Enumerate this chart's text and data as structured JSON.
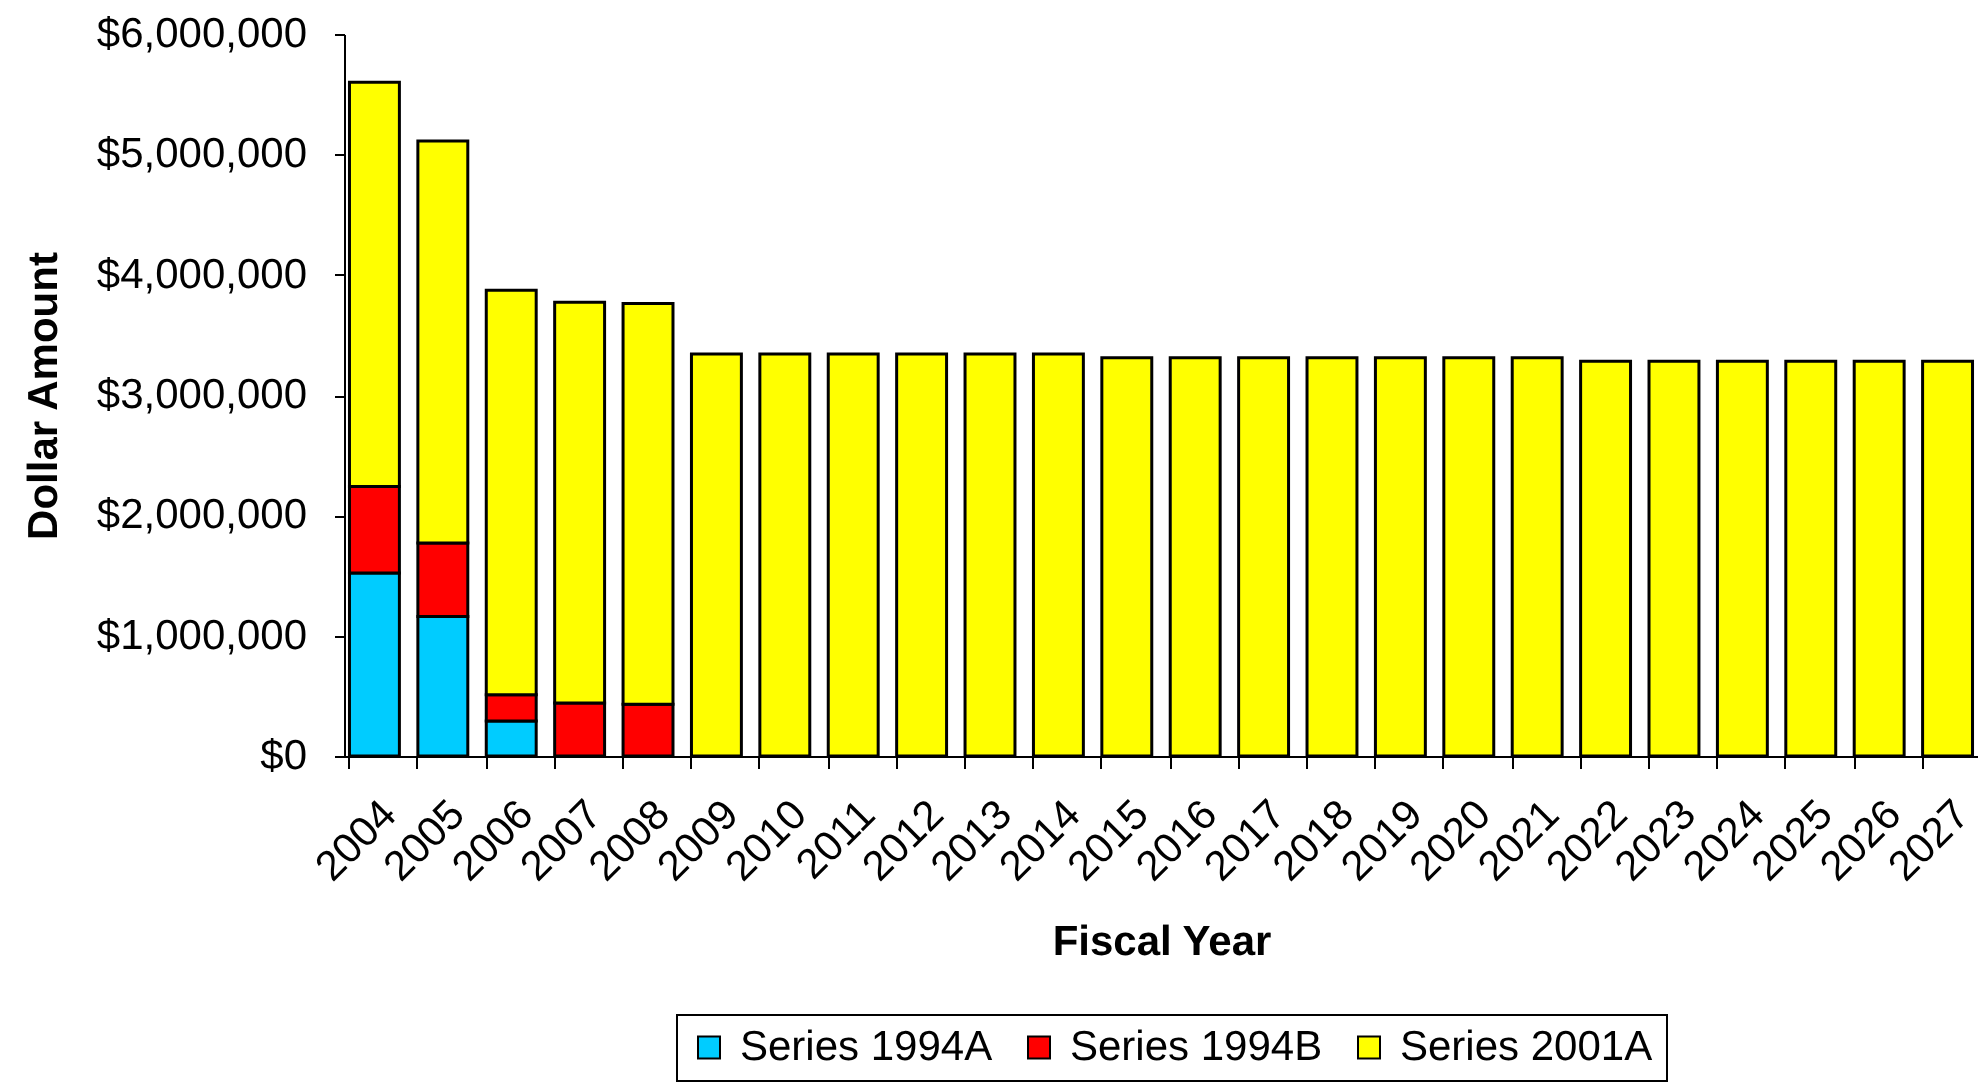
{
  "chart_data": {
    "type": "bar",
    "stacked": true,
    "xlabel": "Fiscal Year",
    "ylabel": "Dollar Amount",
    "categories": [
      "2004",
      "2005",
      "2006",
      "2007",
      "2008",
      "2009",
      "2010",
      "2011",
      "2012",
      "2013",
      "2014",
      "2015",
      "2016",
      "2017",
      "2018",
      "2019",
      "2020",
      "2021",
      "2022",
      "2023",
      "2024",
      "2025",
      "2026",
      "2027"
    ],
    "series": [
      {
        "name": "Series 1994A",
        "color": "#00ccff",
        "values": [
          1520000,
          1160000,
          290000,
          null,
          null,
          null,
          null,
          null,
          null,
          null,
          null,
          null,
          null,
          null,
          null,
          null,
          null,
          null,
          null,
          null,
          null,
          null,
          null,
          null
        ]
      },
      {
        "name": "Series 1994B",
        "color": "#ff0000",
        "values": [
          720000,
          610000,
          220000,
          440000,
          430000,
          null,
          null,
          null,
          null,
          null,
          null,
          null,
          null,
          null,
          null,
          null,
          null,
          null,
          null,
          null,
          null,
          null,
          null,
          null
        ]
      },
      {
        "name": "Series 2001A",
        "color": "#ffff00",
        "values": [
          3360000,
          3340000,
          3360000,
          3330000,
          3330000,
          3340000,
          3340000,
          3340000,
          3340000,
          3340000,
          3340000,
          3310000,
          3310000,
          3310000,
          3310000,
          3310000,
          3310000,
          3310000,
          3280000,
          3280000,
          3280000,
          3280000,
          3280000,
          3280000
        ]
      }
    ],
    "ylim": [
      0,
      6000000
    ],
    "yticks": [
      {
        "value": 0,
        "label": "$0"
      },
      {
        "value": 1000000,
        "label": "$1,000,000"
      },
      {
        "value": 2000000,
        "label": "$2,000,000"
      },
      {
        "value": 3000000,
        "label": "$3,000,000"
      },
      {
        "value": 4000000,
        "label": "$4,000,000"
      },
      {
        "value": 5000000,
        "label": "$5,000,000"
      },
      {
        "value": 6000000,
        "label": "$6,000,000"
      }
    ],
    "grid": false,
    "legend": "bottom"
  }
}
